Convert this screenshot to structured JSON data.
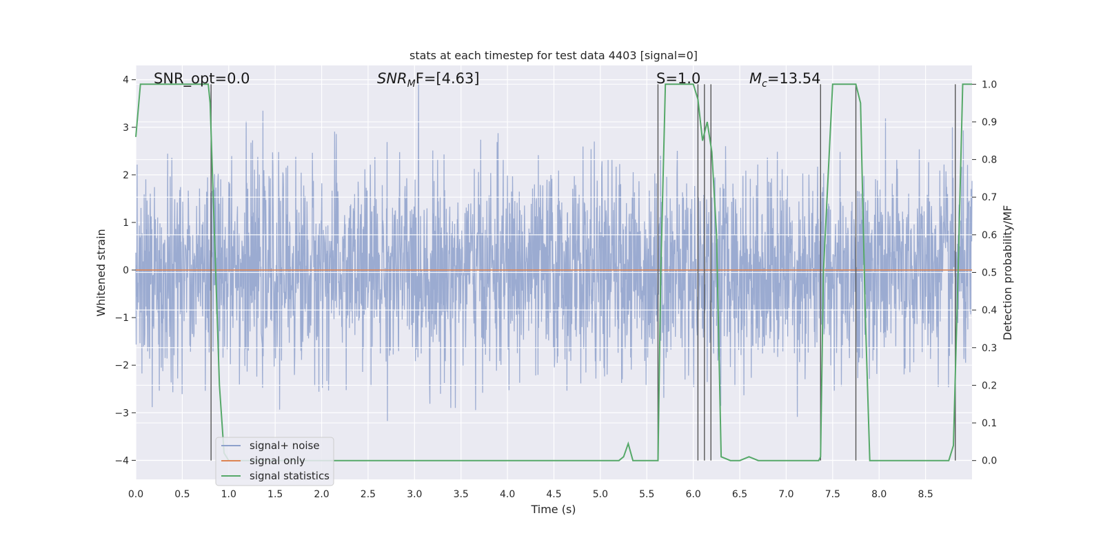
{
  "chart_data": {
    "type": "line",
    "title": "stats at each timestep for test data 4403 [signal=0]",
    "xlabel": "Time (s)",
    "ylabel": "Whitened strain",
    "y2label": "Detection probability/MF",
    "xlim": [
      0.0,
      9.0
    ],
    "ylim": [
      -4.4,
      4.3
    ],
    "y2lim": [
      -0.05,
      1.05
    ],
    "xticks": [
      "0.0",
      "0.5",
      "1.0",
      "1.5",
      "2.0",
      "2.5",
      "3.0",
      "3.5",
      "4.0",
      "4.5",
      "5.0",
      "5.5",
      "6.0",
      "6.5",
      "7.0",
      "7.5",
      "8.0",
      "8.5"
    ],
    "yticks": [
      "4",
      "3",
      "2",
      "1",
      "0",
      "−1",
      "−2",
      "−3",
      "−4"
    ],
    "y2ticks": [
      "1.0",
      "0.9",
      "0.8",
      "0.7",
      "0.6",
      "0.5",
      "0.4",
      "0.3",
      "0.2",
      "0.1",
      "0.0"
    ],
    "grid": true,
    "legend": {
      "placement": "lower-left",
      "entries": [
        "signal+ noise",
        "signal only",
        "signal statistics"
      ]
    },
    "annotations": {
      "snr_opt": "SNR_opt=0.0",
      "snr_mf_main": "SNR",
      "snr_mf_sub": "M",
      "snr_mf_tail": "F=[4.63]",
      "s": "S=1.0",
      "mc_main": "M",
      "mc_sub": "c",
      "mc_tail": "=13.54"
    },
    "series": [
      {
        "name": "signal+ noise",
        "color": "#8da0cb",
        "description_values": "whitened strain noise, std ~1.0, sampled across 0–9 s"
      },
      {
        "name": "signal only",
        "color": "#dd8452",
        "x": [
          0.0,
          9.0
        ],
        "y": [
          0.0,
          0.0
        ]
      },
      {
        "name": "signal statistics",
        "color": "#55a868",
        "x": [
          0.0,
          0.05,
          0.1,
          0.2,
          0.3,
          0.4,
          0.5,
          0.6,
          0.7,
          0.78,
          0.8,
          0.82,
          0.9,
          0.95,
          1.0,
          1.5,
          2.0,
          2.5,
          3.0,
          3.5,
          4.0,
          4.5,
          4.7,
          5.0,
          5.2,
          5.25,
          5.3,
          5.35,
          5.4,
          5.5,
          5.6,
          5.62,
          5.65,
          5.7,
          5.8,
          5.9,
          6.0,
          6.05,
          6.1,
          6.15,
          6.2,
          6.25,
          6.3,
          6.4,
          6.5,
          6.6,
          6.7,
          6.8,
          7.0,
          7.3,
          7.35,
          7.37,
          7.4,
          7.5,
          7.6,
          7.7,
          7.75,
          7.8,
          7.85,
          7.9,
          8.0,
          8.5,
          8.75,
          8.8,
          8.85,
          8.9,
          8.95,
          9.0
        ],
        "y": [
          0.86,
          1.0,
          1.0,
          1.0,
          1.0,
          1.0,
          1.0,
          1.0,
          1.0,
          1.0,
          0.95,
          0.8,
          0.2,
          0.02,
          0.0,
          0.0,
          0.0,
          0.0,
          0.0,
          0.0,
          0.0,
          0.0,
          0.0,
          0.0,
          0.0,
          0.01,
          0.045,
          0.0,
          0.0,
          0.0,
          0.0,
          0.0,
          0.5,
          1.0,
          1.0,
          1.0,
          1.0,
          0.96,
          0.85,
          0.9,
          0.82,
          0.6,
          0.01,
          0.0,
          0.0,
          0.01,
          0.0,
          0.0,
          0.0,
          0.0,
          0.0,
          0.01,
          0.5,
          1.0,
          1.0,
          1.0,
          1.0,
          0.95,
          0.4,
          0.0,
          0.0,
          0.0,
          0.0,
          0.04,
          0.5,
          1.0,
          1.0,
          1.0
        ]
      }
    ],
    "vlines_x": [
      0.81,
      5.62,
      6.05,
      6.12,
      6.19,
      7.37,
      7.75,
      8.82
    ]
  }
}
